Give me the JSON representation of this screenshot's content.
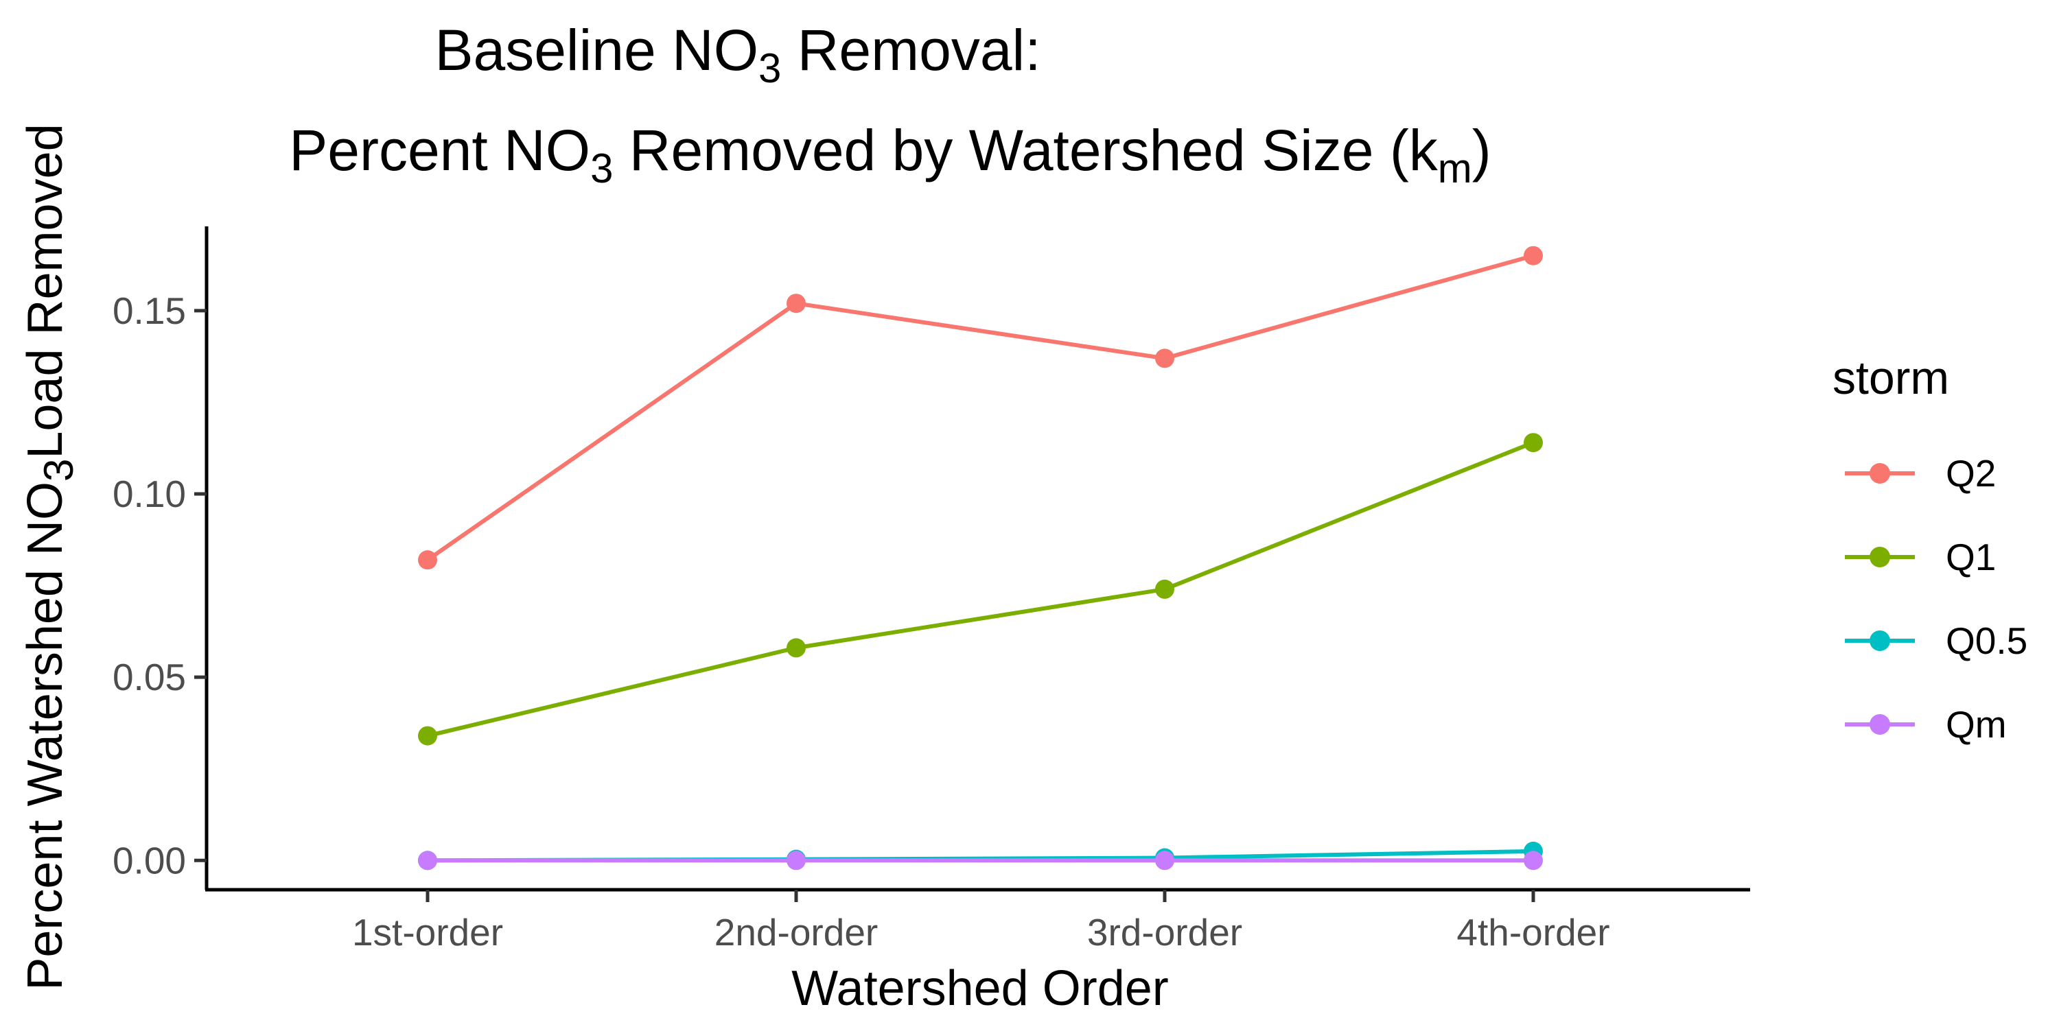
{
  "chart_data": {
    "type": "line",
    "title": {
      "line1": {
        "pre": "Baseline NO",
        "sub": "3",
        "post": " Removal:"
      },
      "line2": {
        "pre": "Percent NO",
        "sub1": "3",
        "mid": " Removed by Watershed Size (k",
        "sub2": "m",
        "post": ")"
      }
    },
    "xlabel": "Watershed Order",
    "ylabel": {
      "pre": "Percent Watershed NO",
      "sub": "3",
      "post": "Load Removed"
    },
    "categories": [
      "1st-order",
      "2nd-order",
      "3rd-order",
      "4th-order"
    ],
    "y_ticks": [
      0.0,
      0.05,
      0.1,
      0.15
    ],
    "y_tick_labels": [
      "0.00",
      "0.05",
      "0.10",
      "0.15"
    ],
    "ylim": [
      -0.008,
      0.173
    ],
    "grid": false,
    "legend": {
      "title": "storm",
      "position": "right"
    },
    "series": [
      {
        "name": "Q2",
        "color": "#F8766D",
        "values": [
          0.082,
          0.152,
          0.137,
          0.165
        ]
      },
      {
        "name": "Q1",
        "color": "#7CAE00",
        "values": [
          0.034,
          0.058,
          0.074,
          0.114
        ]
      },
      {
        "name": "Q0.5",
        "color": "#00BFC4",
        "values": [
          0.0,
          0.0003,
          0.0007,
          0.0025
        ]
      },
      {
        "name": "Qm",
        "color": "#C77CFF",
        "values": [
          0.0,
          0.0,
          0.0,
          0.0
        ]
      }
    ]
  }
}
